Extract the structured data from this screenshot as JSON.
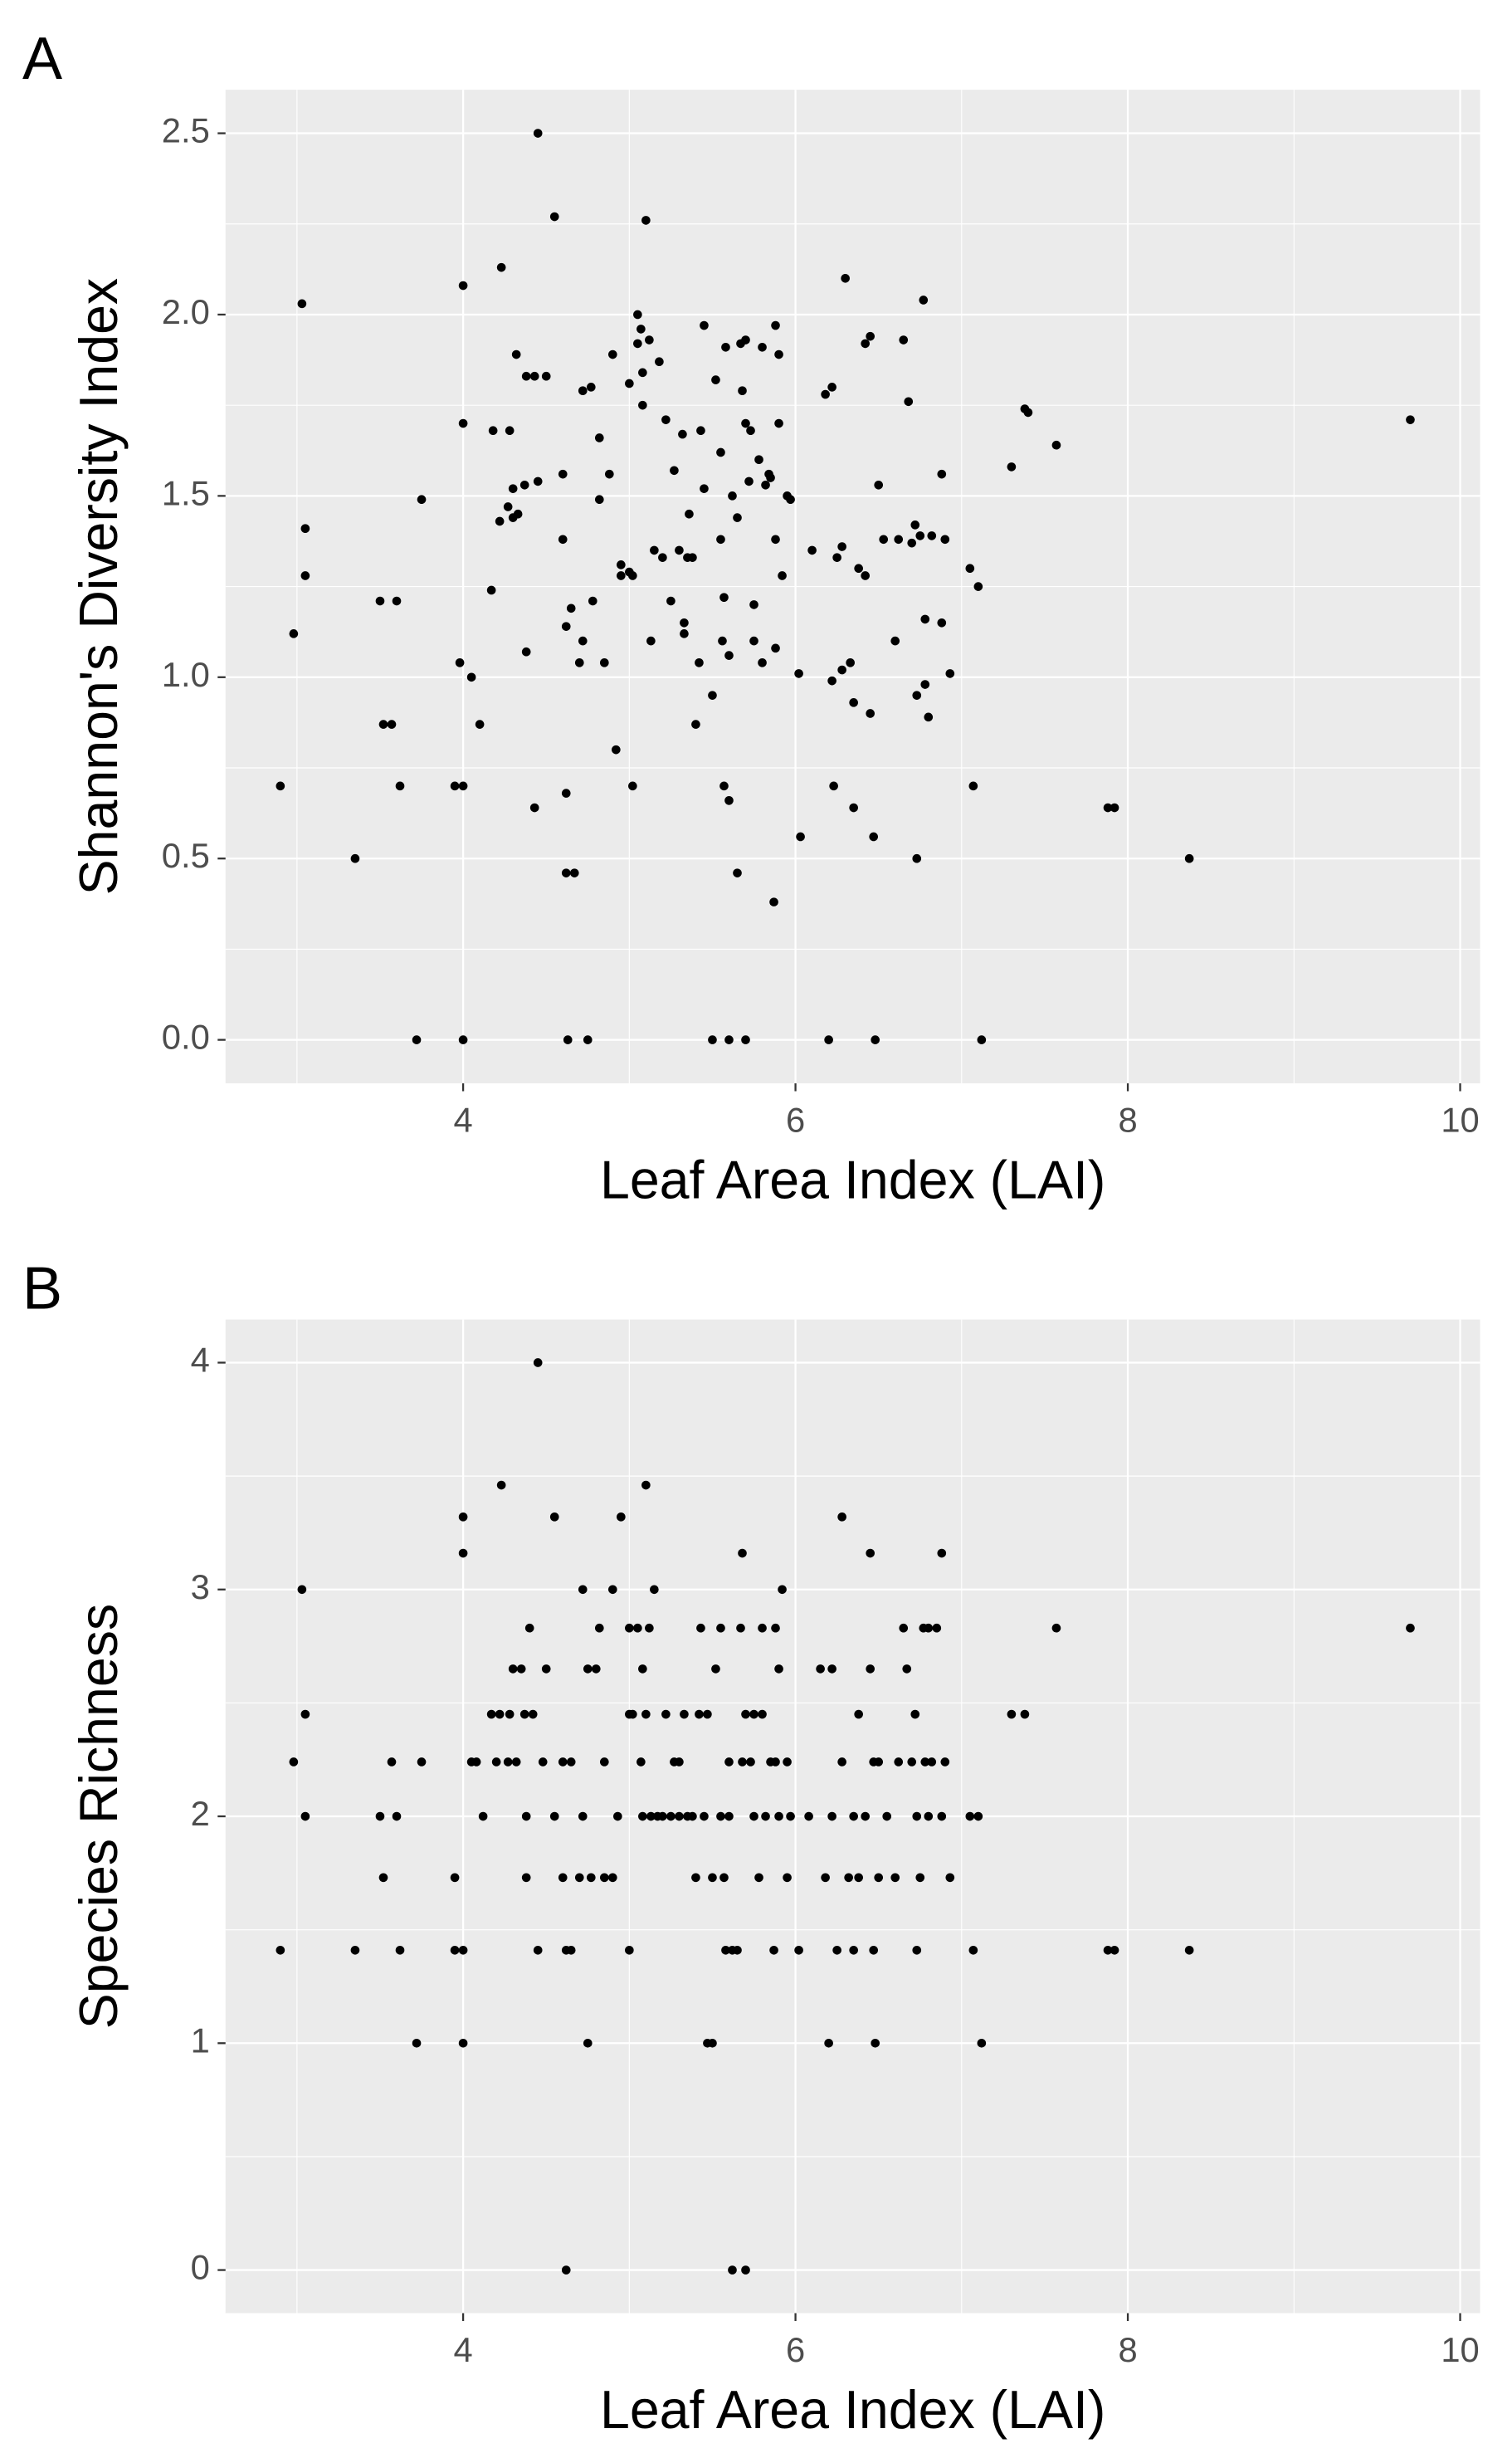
{
  "chart_data": [
    {
      "type": "scatter",
      "tag": "A",
      "xlabel": "Leaf Area Index (LAI)",
      "ylabel": "Shannon's Diversity Index",
      "color": "#000000",
      "grid": true,
      "xlim": [
        2.57,
        10.12
      ],
      "ylim": [
        -0.12,
        2.62
      ],
      "xticks": [
        4,
        6,
        8,
        10
      ],
      "yticks": [
        {
          "value": 0,
          "label": "0.0"
        },
        0.5,
        {
          "value": 1,
          "label": "1.0"
        },
        1.5,
        {
          "value": 2,
          "label": "2.0"
        },
        2.5
      ],
      "x": [
        2.9,
        2.98,
        3.03,
        3.05,
        3.05,
        3.35,
        3.5,
        3.6,
        3.52,
        3.57,
        3.62,
        3.72,
        3.75,
        3.95,
        4.0,
        3.98,
        4.0,
        4.0,
        4.05,
        4.0,
        4.1,
        4.17,
        4.18,
        4.22,
        4.23,
        4.27,
        4.28,
        4.3,
        4.3,
        4.32,
        4.33,
        4.37,
        4.38,
        4.38,
        4.43,
        4.43,
        4.45,
        4.45,
        4.5,
        4.55,
        4.6,
        4.6,
        4.62,
        4.62,
        4.62,
        4.65,
        4.67,
        4.63,
        4.7,
        4.72,
        4.72,
        4.77,
        4.75,
        4.78,
        4.82,
        4.82,
        4.85,
        4.88,
        4.9,
        4.92,
        4.95,
        4.95,
        5.0,
        5.0,
        5.02,
        5.02,
        5.05,
        5.05,
        5.07,
        5.08,
        5.08,
        5.1,
        5.12,
        5.13,
        5.15,
        5.18,
        5.2,
        5.22,
        5.25,
        5.27,
        5.3,
        5.32,
        5.33,
        5.33,
        5.35,
        5.36,
        5.38,
        5.4,
        5.42,
        5.43,
        5.45,
        5.45,
        5.5,
        5.5,
        5.52,
        5.55,
        5.55,
        5.56,
        5.57,
        5.57,
        5.58,
        5.6,
        5.6,
        5.6,
        5.62,
        5.65,
        5.65,
        5.67,
        5.68,
        5.7,
        5.7,
        5.7,
        5.72,
        5.73,
        5.75,
        5.75,
        5.78,
        5.8,
        5.8,
        5.82,
        5.84,
        5.85,
        5.87,
        5.88,
        5.88,
        5.88,
        5.9,
        5.9,
        5.92,
        5.95,
        5.97,
        6.02,
        6.03,
        6.1,
        6.18,
        6.2,
        6.22,
        6.22,
        6.23,
        6.25,
        6.28,
        6.28,
        6.3,
        6.33,
        6.35,
        6.35,
        6.38,
        6.42,
        6.42,
        6.45,
        6.45,
        6.47,
        6.48,
        6.5,
        6.53,
        6.6,
        6.62,
        6.65,
        6.68,
        6.7,
        6.72,
        6.73,
        6.73,
        6.75,
        6.77,
        6.78,
        6.78,
        6.8,
        6.82,
        6.88,
        6.88,
        6.9,
        6.93,
        7.05,
        7.07,
        7.1,
        7.12,
        7.3,
        7.38,
        7.4,
        7.57,
        7.88,
        7.92,
        8.37,
        9.7
      ],
      "values": [
        0.7,
        1.12,
        2.03,
        1.41,
        1.28,
        0.5,
        1.21,
        1.21,
        0.87,
        0.87,
        0.7,
        0,
        1.49,
        0.7,
        0.7,
        1.04,
        2.08,
        1.7,
        1.0,
        0,
        0.87,
        1.24,
        1.68,
        1.43,
        2.13,
        1.47,
        1.68,
        1.52,
        1.44,
        1.89,
        1.45,
        1.53,
        1.83,
        1.07,
        1.83,
        0.64,
        1.54,
        2.5,
        1.83,
        2.27,
        1.56,
        1.38,
        1.14,
        0.68,
        0.46,
        1.19,
        0.46,
        0,
        1.04,
        1.79,
        1.1,
        1.8,
        0,
        1.21,
        1.66,
        1.49,
        1.04,
        1.56,
        1.89,
        0.8,
        1.31,
        1.28,
        1.29,
        1.81,
        1.28,
        0.7,
        1.92,
        2.0,
        1.96,
        1.84,
        1.75,
        2.26,
        1.93,
        1.1,
        1.35,
        1.87,
        1.33,
        1.71,
        1.21,
        1.57,
        1.35,
        1.67,
        1.15,
        1.12,
        1.33,
        1.45,
        1.33,
        0.87,
        1.04,
        1.68,
        1.52,
        1.97,
        0.95,
        0,
        1.82,
        1.62,
        1.38,
        1.1,
        1.22,
        0.7,
        1.91,
        1.06,
        0.66,
        0,
        1.5,
        1.44,
        0.46,
        1.92,
        1.79,
        1.7,
        1.93,
        0,
        1.54,
        1.68,
        1.1,
        1.2,
        1.6,
        1.04,
        1.91,
        1.53,
        1.56,
        1.55,
        0.38,
        1.97,
        1.38,
        1.08,
        1.89,
        1.7,
        1.28,
        1.5,
        1.49,
        1.01,
        0.56,
        1.35,
        1.78,
        0,
        1.8,
        0.99,
        0.7,
        1.33,
        1.36,
        1.02,
        2.1,
        1.04,
        0.64,
        0.93,
        1.3,
        1.28,
        1.92,
        1.94,
        0.9,
        0.56,
        0,
        1.53,
        1.38,
        1.1,
        1.38,
        1.93,
        1.76,
        1.37,
        1.42,
        0.95,
        0.5,
        1.39,
        2.04,
        1.16,
        0.98,
        0.89,
        1.39,
        1.56,
        1.15,
        1.38,
        1.01,
        1.3,
        0.7,
        1.25,
        0,
        1.58,
        1.74,
        1.73,
        1.64,
        0.64,
        0.64,
        0.5,
        1.71
      ]
    },
    {
      "type": "scatter",
      "tag": "B",
      "xlabel": "Leaf Area Index (LAI)",
      "ylabel": "Species Richness",
      "color": "#000000",
      "grid": true,
      "xlim": [
        2.57,
        10.12
      ],
      "ylim": [
        -0.19,
        4.19
      ],
      "xticks": [
        4,
        6,
        8,
        10
      ],
      "yticks": [
        0,
        1,
        2,
        3,
        4
      ],
      "x": [
        2.9,
        2.98,
        3.03,
        3.05,
        3.05,
        3.35,
        3.5,
        3.52,
        3.57,
        3.6,
        3.62,
        3.72,
        3.75,
        3.95,
        3.95,
        4.0,
        4.0,
        4.0,
        4.0,
        4.05,
        4.08,
        4.12,
        4.17,
        4.2,
        4.23,
        4.22,
        4.27,
        4.28,
        4.3,
        4.32,
        4.35,
        4.37,
        4.38,
        4.38,
        4.4,
        4.42,
        4.45,
        4.45,
        4.48,
        4.5,
        4.55,
        4.55,
        4.6,
        4.6,
        4.62,
        4.65,
        4.65,
        4.62,
        4.7,
        4.72,
        4.72,
        4.75,
        4.75,
        4.77,
        4.8,
        4.82,
        4.85,
        4.85,
        4.9,
        4.9,
        4.93,
        4.95,
        5.0,
        5.0,
        5.0,
        5.02,
        5.05,
        5.07,
        5.08,
        5.08,
        5.1,
        5.1,
        5.12,
        5.13,
        5.15,
        5.17,
        5.2,
        5.22,
        5.25,
        5.27,
        5.3,
        5.3,
        5.33,
        5.35,
        5.38,
        5.4,
        5.42,
        5.43,
        5.45,
        5.47,
        5.47,
        5.5,
        5.5,
        5.52,
        5.55,
        5.55,
        5.57,
        5.58,
        5.6,
        5.6,
        5.62,
        5.62,
        5.65,
        5.67,
        5.68,
        5.68,
        5.7,
        5.7,
        5.73,
        5.75,
        5.75,
        5.78,
        5.8,
        5.8,
        5.82,
        5.85,
        5.87,
        5.88,
        5.88,
        5.9,
        5.9,
        5.92,
        5.95,
        5.95,
        5.97,
        6.02,
        6.08,
        6.15,
        6.18,
        6.2,
        6.22,
        6.22,
        6.25,
        6.28,
        6.28,
        6.32,
        6.35,
        6.35,
        6.38,
        6.38,
        6.42,
        6.45,
        6.45,
        6.47,
        6.47,
        6.48,
        6.5,
        6.5,
        6.55,
        6.6,
        6.62,
        6.65,
        6.67,
        6.7,
        6.72,
        6.73,
        6.73,
        6.75,
        6.77,
        6.78,
        6.8,
        6.8,
        6.82,
        6.85,
        6.88,
        6.88,
        6.9,
        6.93,
        7.05,
        7.07,
        7.1,
        7.12,
        7.3,
        7.38,
        7.57,
        7.88,
        7.92,
        8.37,
        9.7
      ],
      "values": [
        1.41,
        2.24,
        3.0,
        2.45,
        2.0,
        1.41,
        2.0,
        1.73,
        2.24,
        2.0,
        1.41,
        1.0,
        2.24,
        1.73,
        1.41,
        1.41,
        3.32,
        3.16,
        1.0,
        2.24,
        2.24,
        2.0,
        2.45,
        2.24,
        3.46,
        2.45,
        2.24,
        2.45,
        2.65,
        2.24,
        2.65,
        2.45,
        2.0,
        1.73,
        2.83,
        2.45,
        4.0,
        1.41,
        2.24,
        2.65,
        3.32,
        2.0,
        2.24,
        1.73,
        1.41,
        2.24,
        1.41,
        0,
        1.73,
        3.0,
        2.0,
        2.65,
        1.0,
        1.73,
        2.65,
        2.83,
        2.24,
        1.73,
        1.73,
        3.0,
        2.0,
        3.32,
        2.83,
        2.45,
        1.41,
        2.45,
        2.83,
        2.24,
        2.65,
        2.0,
        3.46,
        2.45,
        2.83,
        2.0,
        3.0,
        2.0,
        2.0,
        2.45,
        2.0,
        2.24,
        2.24,
        2.0,
        2.45,
        2.0,
        2.0,
        1.73,
        2.45,
        2.83,
        2.0,
        2.45,
        1.0,
        1.0,
        1.73,
        2.65,
        2.0,
        2.83,
        1.73,
        1.41,
        2.24,
        2.0,
        1.41,
        0,
        1.41,
        2.83,
        2.24,
        3.16,
        2.45,
        0,
        2.24,
        2.0,
        2.45,
        1.73,
        2.45,
        2.83,
        2.0,
        2.24,
        1.41,
        2.83,
        2.24,
        2.0,
        2.65,
        3.0,
        1.73,
        2.24,
        2.0,
        1.41,
        2.0,
        2.65,
        1.73,
        1.0,
        2.65,
        2.0,
        1.41,
        3.32,
        2.24,
        1.73,
        1.41,
        2.0,
        2.45,
        1.73,
        2.0,
        3.16,
        2.65,
        2.24,
        1.41,
        1.0,
        2.24,
        1.73,
        2.0,
        1.73,
        2.24,
        2.83,
        2.65,
        2.24,
        2.45,
        2.0,
        1.41,
        1.73,
        2.83,
        2.24,
        2.83,
        2.0,
        2.24,
        2.83,
        3.16,
        2.0,
        2.24,
        1.73,
        2.0,
        1.41,
        2.0,
        1.0,
        2.45,
        2.45,
        2.83,
        1.41,
        1.41,
        1.41,
        2.83
      ]
    }
  ]
}
